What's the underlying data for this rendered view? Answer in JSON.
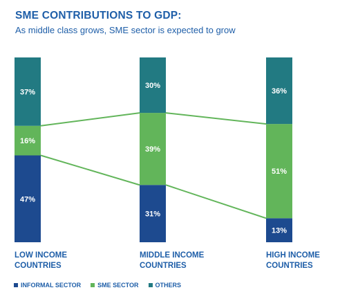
{
  "chart_data": {
    "type": "bar",
    "stacked": true,
    "title": "SME CONTRIBUTIONS TO GDP:",
    "subtitle": "As middle class grows, SME sector is expected to grow",
    "categories": [
      [
        "LOW INCOME",
        "COUNTRIES"
      ],
      [
        "MIDDLE INCOME",
        "COUNTRIES"
      ],
      [
        "HIGH INCOME",
        "COUNTRIES"
      ]
    ],
    "series": [
      {
        "name": "INFORMAL SECTOR",
        "values": [
          47,
          31,
          13
        ],
        "labels": [
          "47%",
          "31%",
          "13%"
        ],
        "color": "#1d4a8f"
      },
      {
        "name": "SME SECTOR",
        "values": [
          16,
          39,
          51
        ],
        "labels": [
          "16%",
          "39%",
          "51%"
        ],
        "color": "#62b55a"
      },
      {
        "name": "OTHERS",
        "values": [
          37,
          30,
          36
        ],
        "labels": [
          "37%",
          "30%",
          "36%"
        ],
        "color": "#227a82"
      }
    ],
    "ylim": [
      0,
      100
    ],
    "legend_position": "bottom-left",
    "connector_color": "#62b55a"
  }
}
